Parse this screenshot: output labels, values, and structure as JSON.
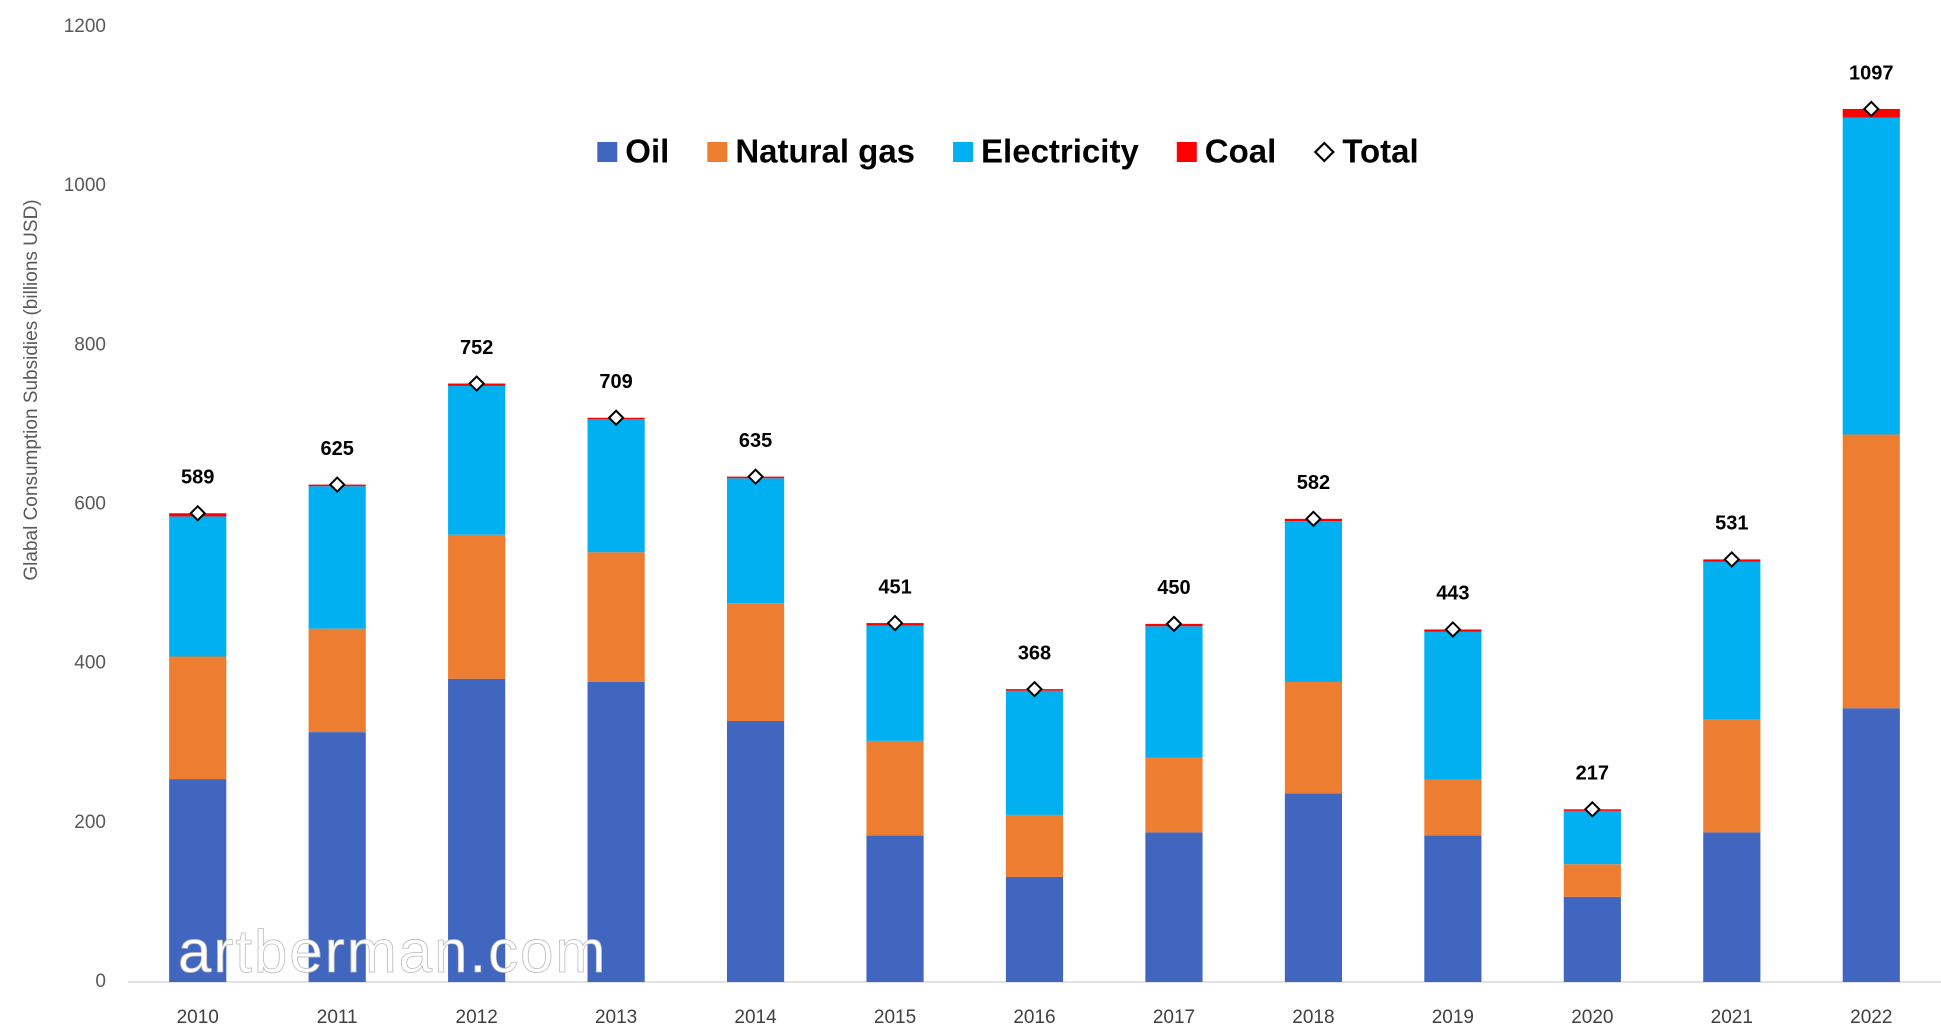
{
  "chart_data": {
    "type": "stacked_bar",
    "y_axis_label": "Glabal Consumption Subsidies (billions USD)",
    "watermark": "artberman.com",
    "categories": [
      "2010",
      "2011",
      "2012",
      "2013",
      "2014",
      "2015",
      "2016",
      "2017",
      "2018",
      "2019",
      "2020",
      "2021",
      "2022"
    ],
    "series": [
      {
        "name": "Oil",
        "color": "#4066c0",
        "values": [
          255,
          314,
          381,
          377,
          328,
          184,
          132,
          188,
          237,
          184,
          107,
          188,
          344
        ]
      },
      {
        "name": "Natural gas",
        "color": "#ed7d31",
        "values": [
          154,
          130,
          181,
          163,
          148,
          119,
          78,
          94,
          140,
          70,
          41,
          142,
          344
        ]
      },
      {
        "name": "Electricity",
        "color": "#00b0f0",
        "values": [
          176,
          179,
          187,
          167,
          157,
          145,
          156,
          165,
          202,
          186,
          67,
          198,
          398
        ]
      },
      {
        "name": "Coal",
        "color": "#ff0000",
        "values": [
          4,
          2,
          3,
          2,
          2,
          3,
          2,
          3,
          3,
          3,
          2,
          3,
          11
        ]
      }
    ],
    "total": {
      "name": "Total",
      "marker": "diamond",
      "values": [
        589,
        625,
        752,
        709,
        635,
        451,
        368,
        450,
        582,
        443,
        217,
        531,
        1097
      ]
    },
    "ylim": [
      0,
      1200
    ],
    "yticks": [
      0,
      200,
      400,
      600,
      800,
      1000,
      1200
    ],
    "legend": "top"
  }
}
